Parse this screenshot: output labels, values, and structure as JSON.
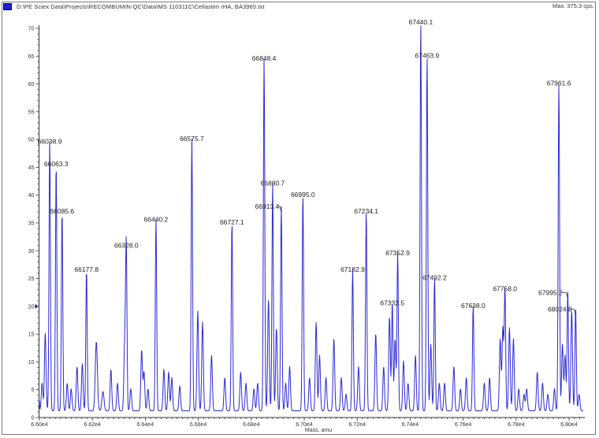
{
  "window": {
    "file_path_title": "D:\\PE Sciex Data\\Projects\\RECOMBUMIN-QC\\Data\\MS 110311C\\Cellastim rHA, BA3965.txt",
    "max_intensity": "Max. 375.3 cps.",
    "series_color": "#1f1fd8"
  },
  "chart_data": {
    "type": "line",
    "title": "D:\\PE Sciex Data\\Projects\\RECOMBUMIN-QC\\Data\\MS 110311C\\Cellastim rHA, BA3965.txt",
    "subtitle": "Max. 375.3 cps.",
    "xlabel": "Mass, amu",
    "ylabel": "",
    "xlim": [
      65980,
      68050
    ],
    "ylim": [
      0,
      70
    ],
    "x_ticks": [
      "6.60e4",
      "6.62e4",
      "6.64e4",
      "6.66e4",
      "6.68e4",
      "6.70e4",
      "6.72e4",
      "6.74e4",
      "6.76e4",
      "6.78e4",
      "6.80e4"
    ],
    "y_ticks": [
      "0",
      "5",
      "10",
      "15",
      "20",
      "25",
      "30",
      "35",
      "40",
      "45",
      "50",
      "55",
      "60",
      "65",
      "70"
    ],
    "grid": false,
    "legend_position": "top-left",
    "y_marker": 20,
    "peaks": [
      {
        "label": "66038.9",
        "x": 66038.9,
        "y": 48.5
      },
      {
        "label": "66063.3",
        "x": 66063.3,
        "y": 44.5
      },
      {
        "label": "66085.6",
        "x": 66085.6,
        "y": 36
      },
      {
        "label": "66177.8",
        "x": 66177.8,
        "y": 25.5
      },
      {
        "label": "66328.0",
        "x": 66328.0,
        "y": 29.8
      },
      {
        "label": "66440.2",
        "x": 66440.2,
        "y": 34.5
      },
      {
        "label": "66575.7",
        "x": 66575.7,
        "y": 49
      },
      {
        "label": "66727.1",
        "x": 66727.1,
        "y": 34
      },
      {
        "label": "66848.4",
        "x": 66848.4,
        "y": 63.5
      },
      {
        "label": "66880.7",
        "x": 66880.7,
        "y": 41
      },
      {
        "label": "66913.4",
        "x": 66913.4,
        "y": 37
      },
      {
        "label": "66995.0",
        "x": 66995.0,
        "y": 39
      },
      {
        "label": "67182.9",
        "x": 67182.9,
        "y": 25.5
      },
      {
        "label": "67234.1",
        "x": 67234.1,
        "y": 36
      },
      {
        "label": "67332.5",
        "x": 67332.5,
        "y": 19.5
      },
      {
        "label": "67352.9",
        "x": 67352.9,
        "y": 28.5
      },
      {
        "label": "67440.1",
        "x": 67440.1,
        "y": 70
      },
      {
        "label": "67463.9",
        "x": 67463.9,
        "y": 64
      },
      {
        "label": "67492.2",
        "x": 67492.2,
        "y": 24
      },
      {
        "label": "67638.0",
        "x": 67638.0,
        "y": 19
      },
      {
        "label": "67758.0",
        "x": 67758.0,
        "y": 22
      },
      {
        "label": "67961.6",
        "x": 67961.6,
        "y": 59
      },
      {
        "label": "67995.2",
        "x": 67995.2,
        "y": 21.5
      },
      {
        "label": "68024.8",
        "x": 68024.8,
        "y": 18.5
      }
    ]
  }
}
